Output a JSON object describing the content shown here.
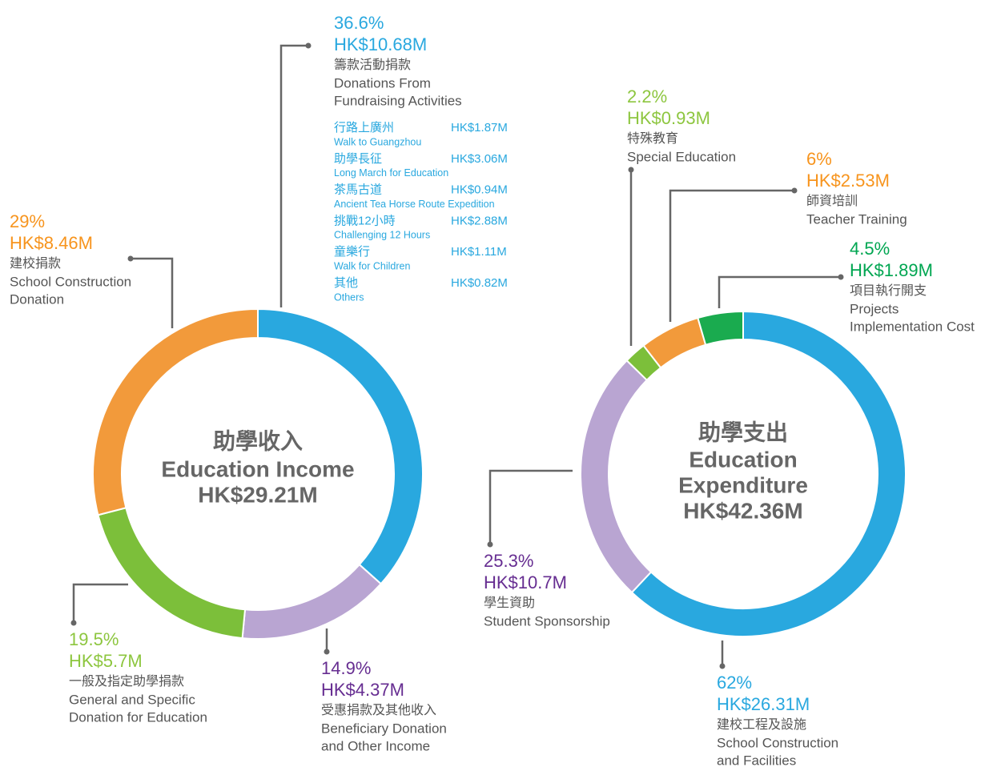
{
  "chart_data": [
    {
      "type": "donut",
      "title": [
        "助學收入",
        "Education Income",
        "HK$29.21M"
      ],
      "values": [
        36.6,
        14.9,
        19.5,
        29
      ],
      "value_labels": [
        "36.6%",
        "14.9%",
        "19.5%",
        "29%"
      ],
      "amounts": [
        "HK$10.68M",
        "HK$4.37M",
        "HK$5.7M",
        "HK$8.46M"
      ],
      "labels_zh": [
        "籌款活動捐款",
        "受惠捐款及其他收入",
        "一般及指定助學捐款",
        "建校捐款"
      ],
      "labels_en": [
        [
          "Donations From",
          "Fundraising Activities"
        ],
        [
          "Beneficiary Donation",
          "and Other Income"
        ],
        [
          "General and Specific",
          "Donation for Education"
        ],
        [
          "School Construction",
          "Donation"
        ]
      ],
      "colors": [
        "#29a8df",
        "#b9a5d2",
        "#7cbf3a",
        "#f29a3b"
      ],
      "label_colors": [
        "#29a8df",
        "#662d91",
        "#8dc63f",
        "#f7941d"
      ],
      "breakdown": [
        {
          "name_zh": "行路上廣州",
          "name_en": "Walk to Guangzhou",
          "amount": "HK$1.87M"
        },
        {
          "name_zh": "助學長征",
          "name_en": "Long March for Education",
          "amount": "HK$3.06M"
        },
        {
          "name_zh": "茶馬古道",
          "name_en": "Ancient Tea Horse Route Expedition",
          "amount": "HK$0.94M"
        },
        {
          "name_zh": "挑戰12小時",
          "name_en": "Challenging 12 Hours",
          "amount": "HK$2.88M"
        },
        {
          "name_zh": "童樂行",
          "name_en": "Walk for Children",
          "amount": "HK$1.11M"
        },
        {
          "name_zh": "其他",
          "name_en": "Others",
          "amount": "HK$0.82M"
        }
      ]
    },
    {
      "type": "donut",
      "title": [
        "助學支出",
        "Education",
        "Expenditure",
        "HK$42.36M"
      ],
      "values": [
        62,
        25.3,
        2.2,
        6,
        4.5
      ],
      "value_labels": [
        "62%",
        "25.3%",
        "2.2%",
        "6%",
        "4.5%"
      ],
      "amounts": [
        "HK$26.31M",
        "HK$10.7M",
        "HK$0.93M",
        "HK$2.53M",
        "HK$1.89M"
      ],
      "labels_zh": [
        "建校工程及設施",
        "學生資助",
        "特殊教育",
        "師資培訓",
        "項目執行開支"
      ],
      "labels_en": [
        [
          "School Construction",
          "and Facilities"
        ],
        [
          "Student Sponsorship"
        ],
        [
          "Special Education"
        ],
        [
          "Teacher Training"
        ],
        [
          "Projects",
          "Implementation Cost"
        ]
      ],
      "colors": [
        "#29a8df",
        "#b9a5d2",
        "#7cbf3a",
        "#f29a3b",
        "#1aab4f"
      ],
      "label_colors": [
        "#29a8df",
        "#662d91",
        "#8dc63f",
        "#f7941d",
        "#00a651"
      ]
    }
  ]
}
